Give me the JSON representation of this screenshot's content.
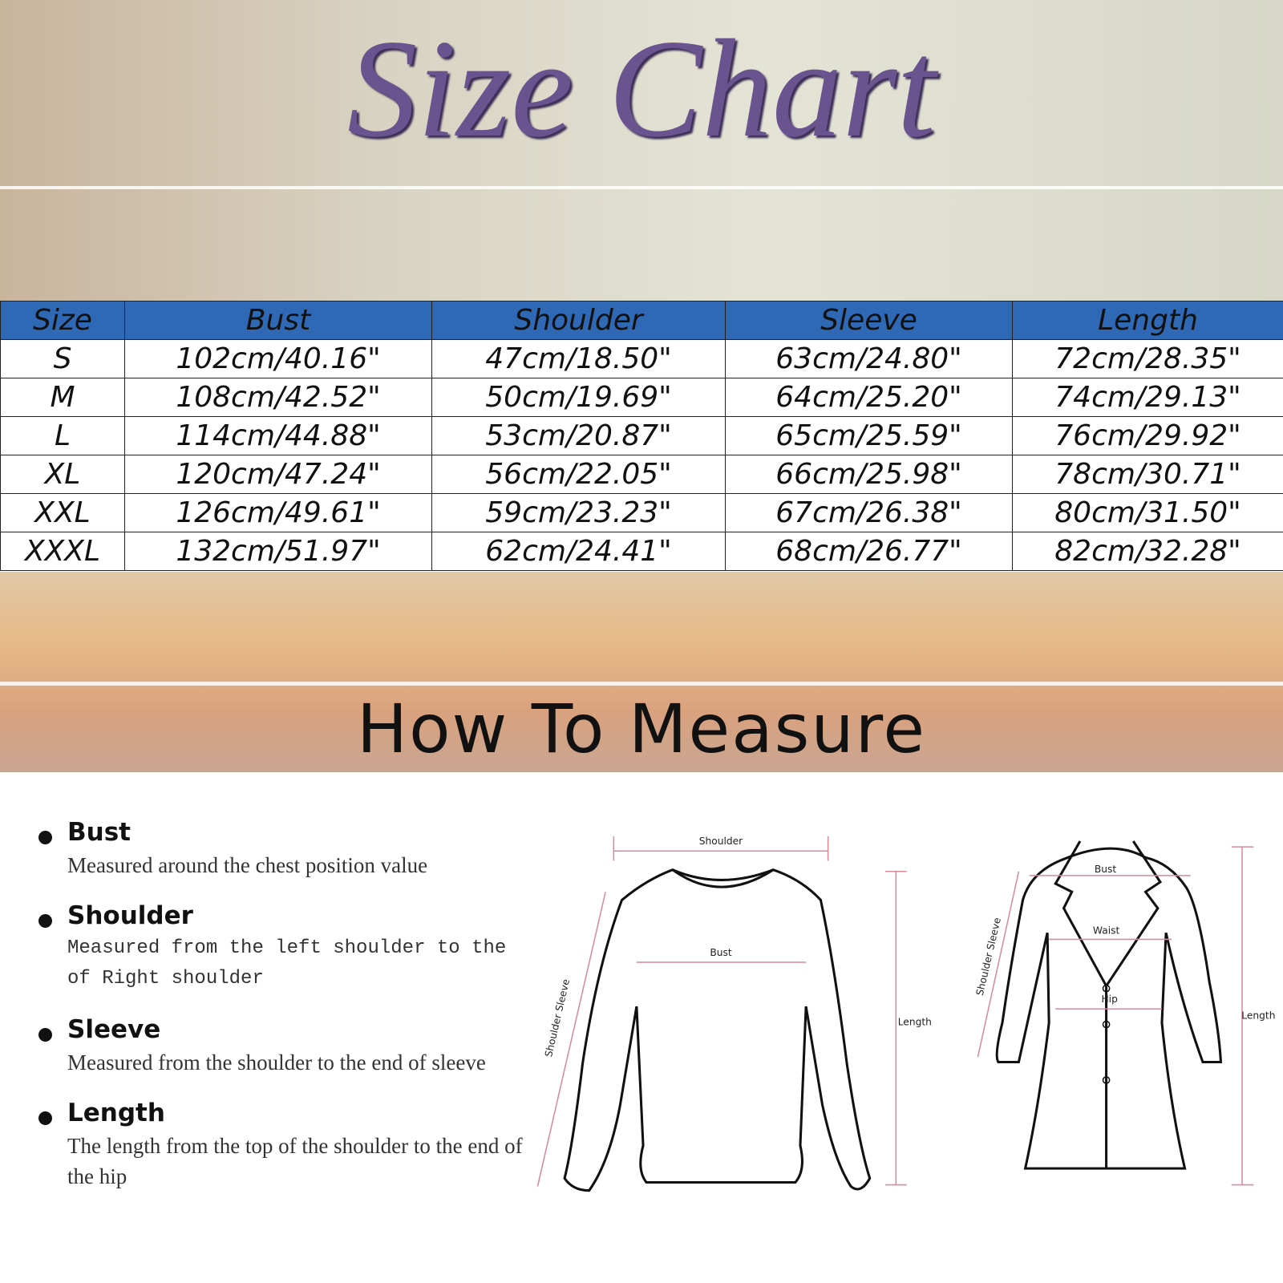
{
  "title": "Size Chart",
  "table": {
    "header": [
      "Size",
      "Bust",
      "Shoulder",
      "Sleeve",
      "Length"
    ],
    "rows": [
      [
        "S",
        "102cm/40.16\"",
        "47cm/18.50\"",
        "63cm/24.80\"",
        "72cm/28.35\""
      ],
      [
        "M",
        "108cm/42.52\"",
        "50cm/19.69\"",
        "64cm/25.20\"",
        "74cm/29.13\""
      ],
      [
        "L",
        "114cm/44.88\"",
        "53cm/20.87\"",
        "65cm/25.59\"",
        "76cm/29.92\""
      ],
      [
        "XL",
        "120cm/47.24\"",
        "56cm/22.05\"",
        "66cm/25.98\"",
        "78cm/30.71\""
      ],
      [
        "XXL",
        "126cm/49.61\"",
        "59cm/23.23\"",
        "67cm/26.38\"",
        "80cm/31.50\""
      ],
      [
        "XXXL",
        "132cm/51.97\"",
        "62cm/24.41\"",
        "68cm/26.77\"",
        "82cm/32.28\""
      ]
    ]
  },
  "section_title": "How To Measure",
  "measures": [
    {
      "name": "Bust",
      "text": "Measured around the chest position value"
    },
    {
      "name": "Shoulder",
      "text": "Measured from the left shoulder to the of Right shoulder"
    },
    {
      "name": "Sleeve",
      "text": "Measured from the shoulder to the end of sleeve"
    },
    {
      "name": "Length",
      "text": "The length from the top of the shoulder to the end of the hip"
    }
  ],
  "diagrams": {
    "sweater": [
      "Shoulder",
      "Bust",
      "Shoulder Sleeve",
      "Length"
    ],
    "coat": [
      "Bust",
      "Waist",
      "Hip",
      "Shoulder Sleeve",
      "Length"
    ]
  }
}
